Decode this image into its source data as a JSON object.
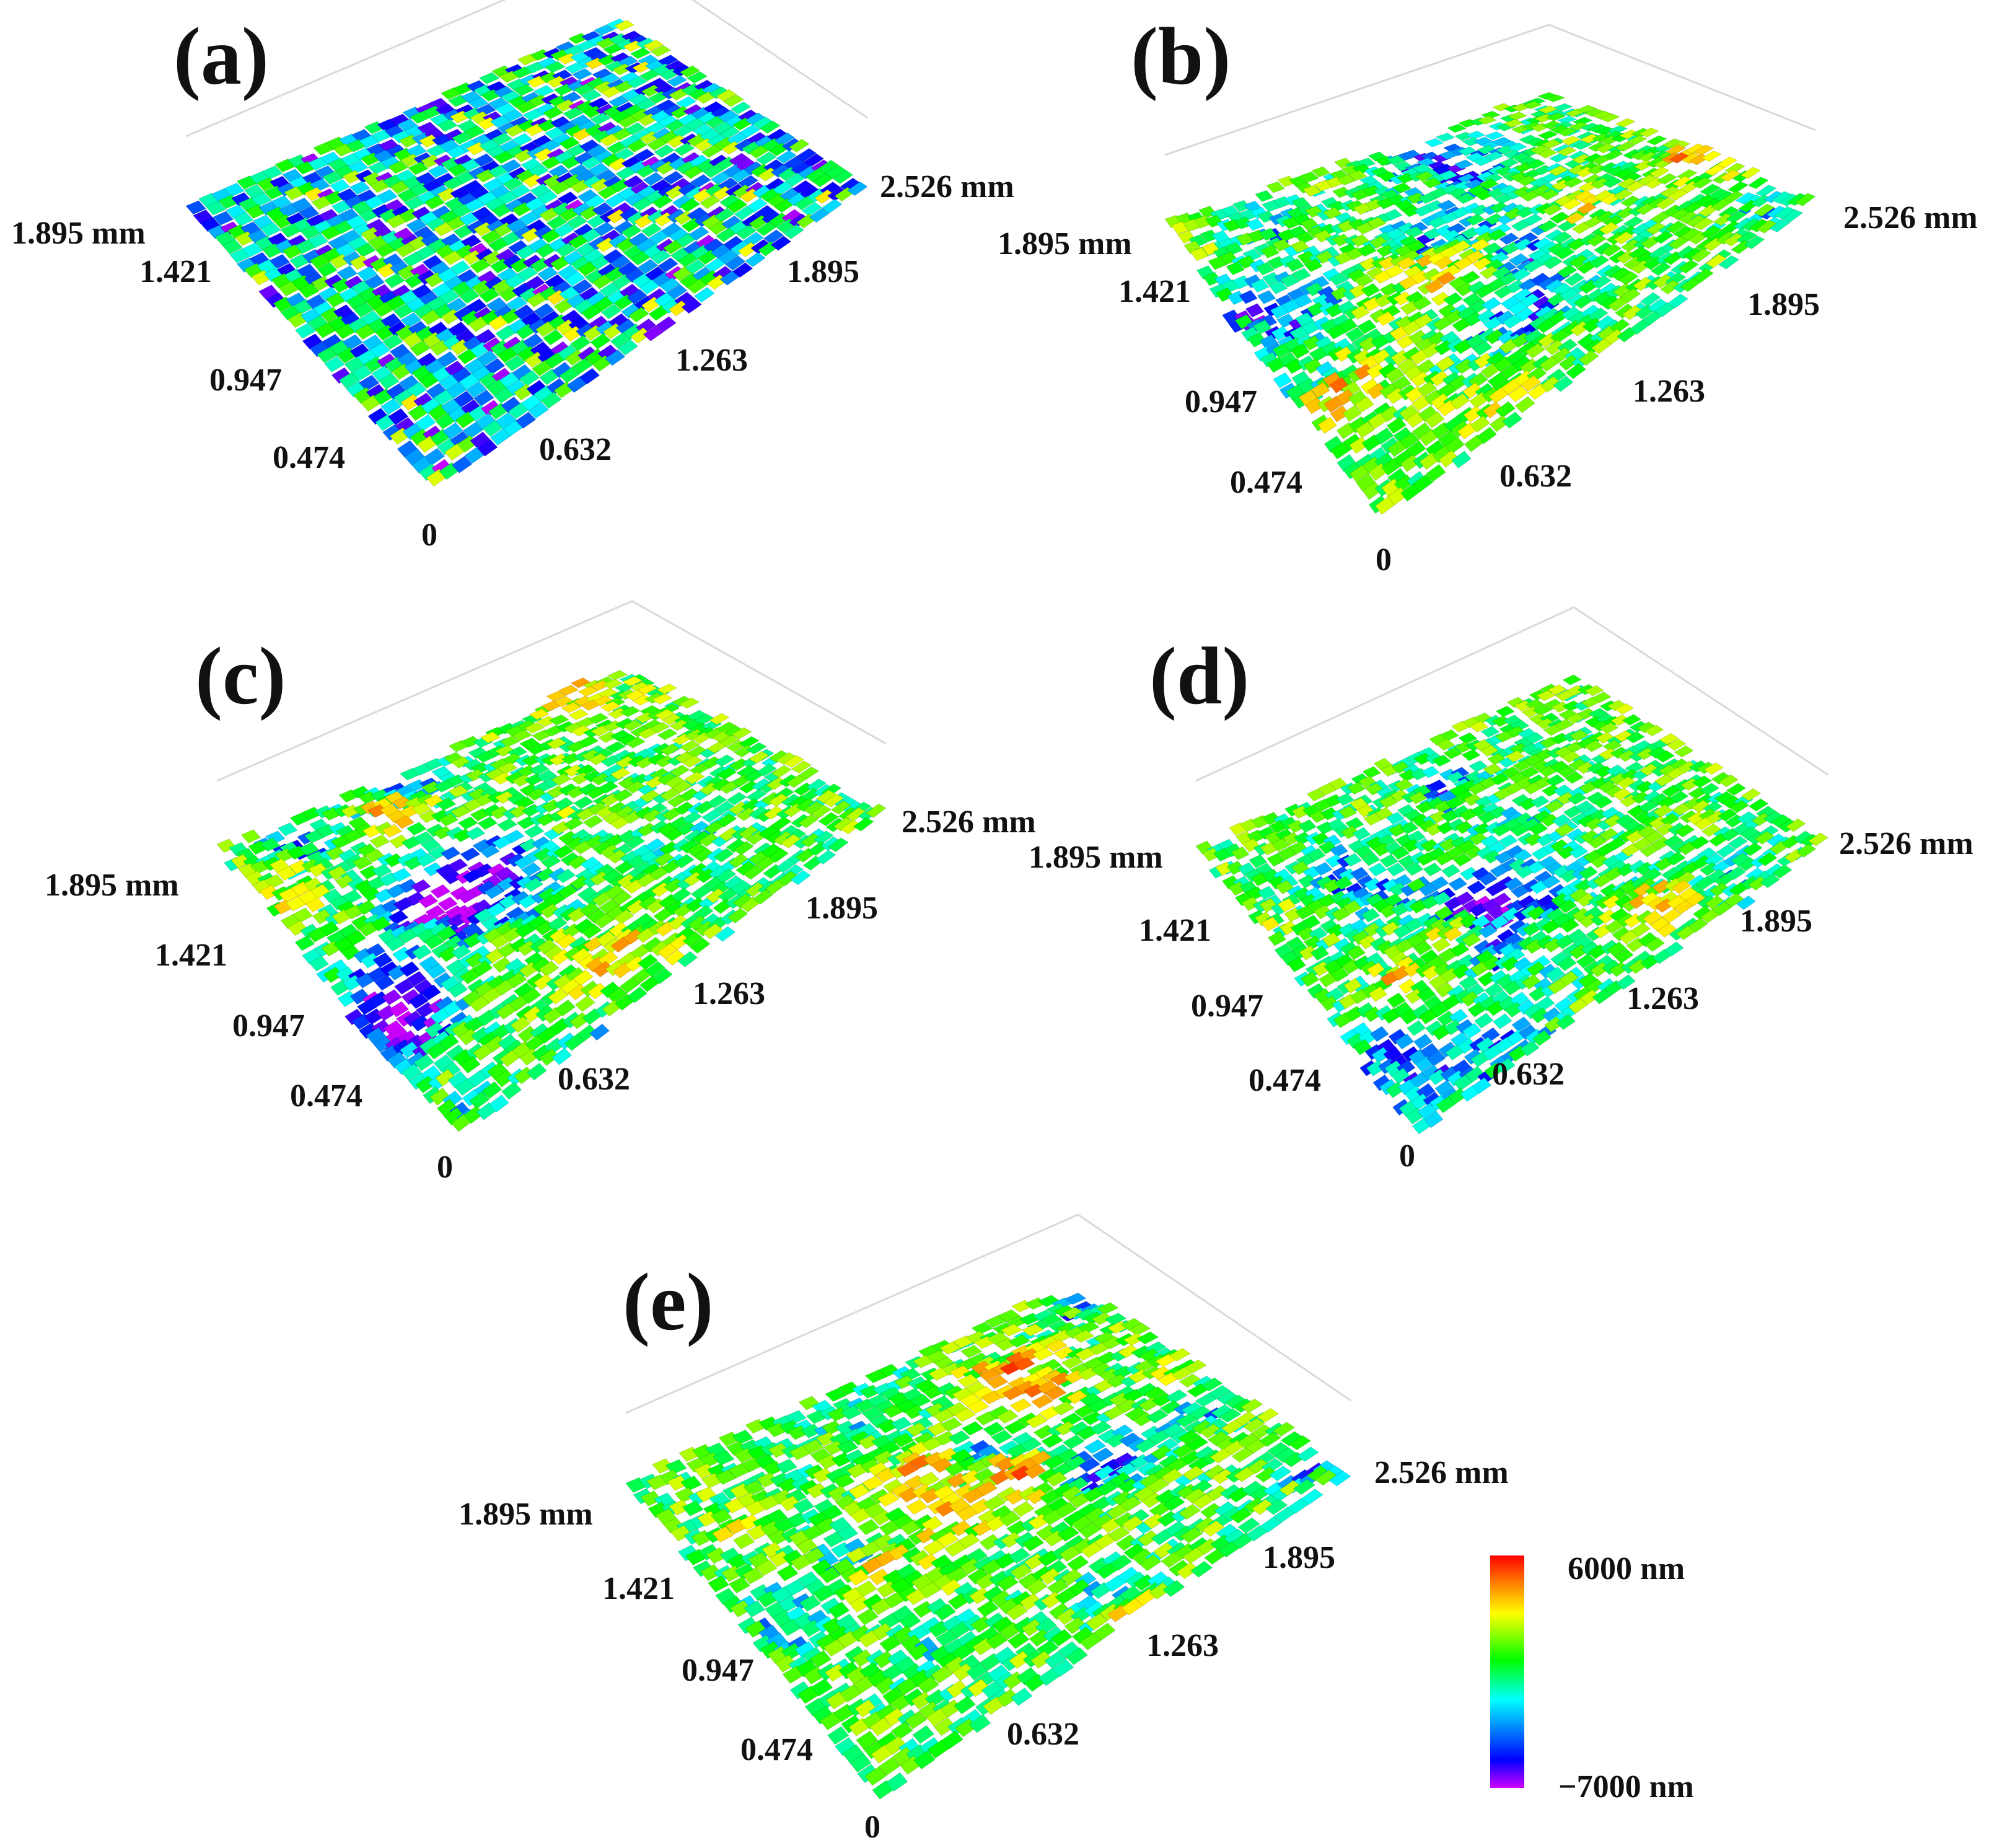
{
  "figure": {
    "panels": [
      {
        "label": "(a)",
        "ticks": {
          "x_max": "2.526 mm",
          "x": [
            "1.895",
            "1.263",
            "0.632"
          ],
          "y_max": "1.895 mm",
          "y": [
            "1.421",
            "0.947",
            "0.474"
          ],
          "origin": "0"
        }
      },
      {
        "label": "(b)",
        "ticks": {
          "x_max": "2.526 mm",
          "x": [
            "1.895",
            "1.263",
            "0.632"
          ],
          "y_max": "1.895 mm",
          "y": [
            "1.421",
            "0.947",
            "0.474"
          ],
          "origin": "0"
        }
      },
      {
        "label": "(c)",
        "ticks": {
          "x_max": "2.526 mm",
          "x": [
            "1.895",
            "1.263",
            "0.632"
          ],
          "y_max": "1.895 mm",
          "y": [
            "1.421",
            "0.947",
            "0.474"
          ],
          "origin": "0"
        }
      },
      {
        "label": "(d)",
        "ticks": {
          "x_max": "2.526 mm",
          "x": [
            "1.895",
            "1.263",
            "0.632"
          ],
          "y_max": "1.895 mm",
          "y": [
            "1.421",
            "0.947",
            "0.474"
          ],
          "origin": "0"
        }
      },
      {
        "label": "(e)",
        "ticks": {
          "x_max": "2.526 mm",
          "x": [
            "1.895",
            "1.263",
            "0.632"
          ],
          "y_max": "1.895 mm",
          "y": [
            "1.421",
            "0.947",
            "0.474"
          ],
          "origin": "0"
        }
      }
    ],
    "colorbar": {
      "max_label": "6000 nm",
      "min_label": "−7000 nm"
    }
  },
  "colors": {
    "height_scale": [
      "#cc00ff",
      "#0000ff",
      "#00ffff",
      "#00ff00",
      "#ffff00",
      "#ff8000",
      "#ff0000"
    ],
    "surface_mid": "#22b84a",
    "peak": "#e8281e",
    "valley": "#1f3fd8"
  }
}
